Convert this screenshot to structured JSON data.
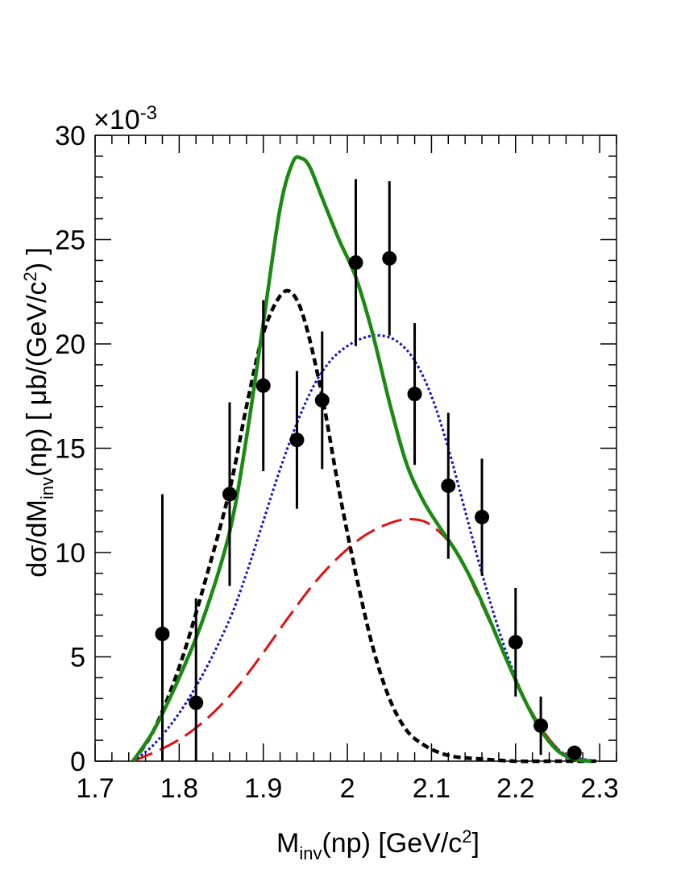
{
  "chart_data": {
    "type": "line",
    "title": "",
    "xlabel": {
      "main": "M",
      "sub": "inv",
      "rest": "(np) [GeV/c",
      "sup": "2",
      "end": "]"
    },
    "ylabel": {
      "pre": "dσ/dM",
      "sub": "inv",
      "mid": "(np) [ μb/(GeV/c",
      "sup": "2",
      "end": ") ]"
    },
    "y_multiplier": {
      "base": "×10",
      "exp": "-3"
    },
    "xlim": [
      1.7,
      2.32
    ],
    "ylim": [
      0,
      30
    ],
    "x_ticks": [
      "1.7",
      "1.8",
      "1.9",
      "2",
      "2.1",
      "2.2",
      "2.3"
    ],
    "y_ticks": [
      "0",
      "5",
      "10",
      "15",
      "20",
      "25",
      "30"
    ],
    "grid": false,
    "data_points": {
      "x": [
        1.78,
        1.82,
        1.86,
        1.9,
        1.94,
        1.97,
        2.01,
        2.05,
        2.08,
        2.12,
        2.16,
        2.2,
        2.23,
        2.27
      ],
      "y": [
        6.1,
        2.8,
        12.8,
        18.0,
        15.4,
        17.3,
        23.9,
        24.1,
        17.6,
        13.2,
        11.7,
        5.7,
        1.7,
        0.4
      ],
      "yerr": [
        6.7,
        5.0,
        4.4,
        4.1,
        3.3,
        3.3,
        4.0,
        3.7,
        3.4,
        3.5,
        2.8,
        2.6,
        1.4,
        0.3
      ]
    },
    "series": [
      {
        "style": "solid",
        "color": "#1a8a10",
        "x": [
          1.745,
          1.77,
          1.8,
          1.83,
          1.86,
          1.88,
          1.9,
          1.92,
          1.935,
          1.945,
          1.955,
          1.97,
          1.99,
          2.01,
          2.03,
          2.05,
          2.07,
          2.09,
          2.11,
          2.13,
          2.15,
          2.17,
          2.19,
          2.21,
          2.23,
          2.25,
          2.27,
          2.29
        ],
        "y": [
          0,
          1.5,
          4.0,
          7.0,
          11.0,
          15.5,
          21.0,
          26.5,
          28.7,
          28.9,
          28.5,
          27.0,
          25.0,
          23.2,
          20.5,
          17.2,
          14.3,
          12.5,
          11.2,
          10.0,
          8.5,
          6.7,
          4.8,
          3.0,
          1.5,
          0.5,
          0.1,
          0.0
        ]
      },
      {
        "style": "dashed",
        "color": "#000000",
        "x": [
          1.745,
          1.77,
          1.8,
          1.83,
          1.86,
          1.88,
          1.9,
          1.92,
          1.935,
          1.95,
          1.97,
          1.99,
          2.01,
          2.03,
          2.05,
          2.07,
          2.09,
          2.11,
          2.13,
          2.16,
          2.2,
          2.25,
          2.3
        ],
        "y": [
          0,
          1.5,
          4.5,
          8.5,
          13.0,
          17.0,
          20.5,
          22.3,
          22.4,
          21.0,
          17.5,
          13.0,
          9.0,
          5.5,
          3.0,
          1.5,
          0.8,
          0.4,
          0.2,
          0.1,
          0.0,
          0.0,
          0.0
        ]
      },
      {
        "style": "dotted",
        "color": "#1010cc",
        "x": [
          1.745,
          1.77,
          1.8,
          1.83,
          1.86,
          1.88,
          1.9,
          1.92,
          1.94,
          1.96,
          1.98,
          2.0,
          2.02,
          2.04,
          2.06,
          2.08,
          2.1,
          2.12,
          2.14,
          2.16,
          2.18,
          2.2,
          2.22,
          2.24,
          2.26,
          2.28,
          2.3
        ],
        "y": [
          0,
          0.8,
          2.3,
          4.3,
          6.8,
          9.0,
          11.5,
          14.0,
          16.2,
          18.0,
          19.2,
          19.9,
          20.3,
          20.4,
          20.1,
          19.2,
          17.5,
          15.0,
          12.0,
          9.0,
          6.3,
          4.0,
          2.2,
          1.0,
          0.3,
          0.1,
          0.0
        ]
      },
      {
        "style": "longdash",
        "color": "#e01010",
        "x": [
          1.745,
          1.78,
          1.81,
          1.84,
          1.87,
          1.9,
          1.93,
          1.96,
          1.99,
          2.02,
          2.05,
          2.075,
          2.1,
          2.13,
          2.16,
          2.19,
          2.22,
          2.25,
          2.28
        ],
        "y": [
          0,
          0.6,
          1.3,
          2.3,
          3.6,
          5.2,
          6.9,
          8.5,
          9.8,
          10.8,
          11.4,
          11.6,
          11.3,
          10.0,
          7.5,
          4.8,
          2.3,
          0.6,
          0.0
        ]
      }
    ]
  }
}
